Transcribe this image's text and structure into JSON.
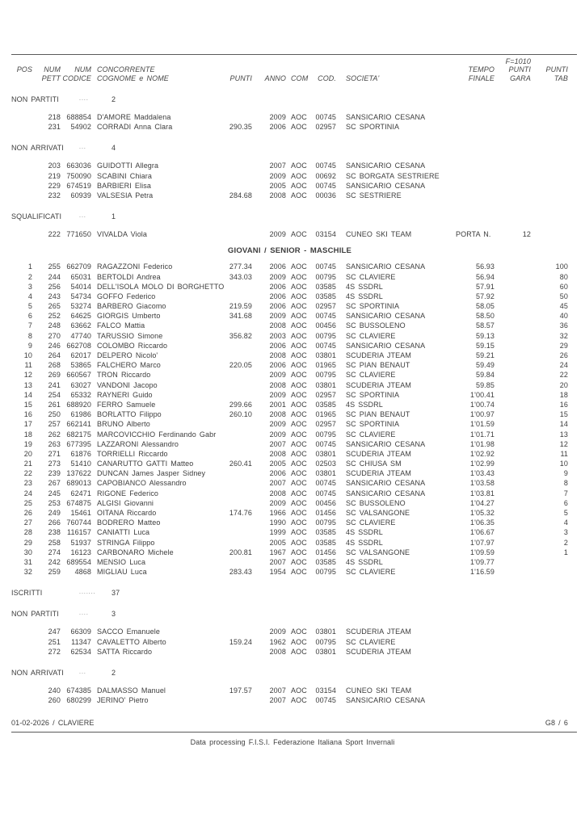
{
  "header": {
    "f_label": "F=1010",
    "line1": {
      "pos": "POS",
      "pett": "NUM",
      "codice": "NUM",
      "name": "CONCORRENTE",
      "tempo": "TEMPO",
      "gara": "PUNTI",
      "tab": "PUNTI"
    },
    "line2": {
      "pett": "PETT",
      "codice": "CODICE",
      "name": "COGNOME e NOME",
      "punti": "PUNTI",
      "anno": "ANNO",
      "com": "COM",
      "cod": "COD.",
      "societa": "SOCIETA'",
      "tempo": "FINALE",
      "gara": "GARA",
      "tab": "TAB"
    }
  },
  "sections": {
    "non_partiti_1": {
      "label": "NON PARTITI",
      "dots": "....",
      "count": "2",
      "rows": [
        [
          "",
          "218",
          "688854",
          "D'AMORE Maddalena",
          "",
          "2009",
          "AOC",
          "00745",
          "SANSICARIO CESANA",
          "",
          "",
          ""
        ],
        [
          "",
          "231",
          "54902",
          "CORRADI Anna Clara",
          "290.35",
          "2006",
          "AOC",
          "02957",
          "SC SPORTINIA",
          "",
          "",
          ""
        ]
      ]
    },
    "non_arrivati_1": {
      "label": "NON ARRIVATI",
      "dots": "...",
      "count": "4",
      "rows": [
        [
          "",
          "203",
          "663036",
          "GUIDOTTI Allegra",
          "",
          "2007",
          "AOC",
          "00745",
          "SANSICARIO CESANA",
          "",
          "",
          ""
        ],
        [
          "",
          "219",
          "750090",
          "SCABINI Chiara",
          "",
          "2009",
          "AOC",
          "00692",
          "SC BORGATA SESTRIERE",
          "",
          "",
          ""
        ],
        [
          "",
          "229",
          "674519",
          "BARBIERI Elisa",
          "",
          "2005",
          "AOC",
          "00745",
          "SANSICARIO CESANA",
          "",
          "",
          ""
        ],
        [
          "",
          "232",
          "60939",
          "VALSESIA Petra",
          "284.68",
          "2008",
          "AOC",
          "00036",
          "SC SESTRIERE",
          "",
          "",
          ""
        ]
      ]
    },
    "squalificati": {
      "label": "SQUALIFICATI",
      "dots": "...",
      "count": "1",
      "rows": [
        [
          "",
          "222",
          "771650",
          "VIVALDA Viola",
          "",
          "2009",
          "AOC",
          "03154",
          "CUNEO SKI TEAM",
          "PORTA N.",
          "12",
          ""
        ]
      ]
    },
    "results_title": "GIOVANI / SENIOR - MASCHILE",
    "results": {
      "rows": [
        [
          "1",
          "255",
          "662709",
          "RAGAZZONI Federico",
          "277.34",
          "2006",
          "AOC",
          "00745",
          "SANSICARIO CESANA",
          "56.93",
          "",
          "100"
        ],
        [
          "2",
          "244",
          "65031",
          "BERTOLDI Andrea",
          "343.03",
          "2009",
          "AOC",
          "00795",
          "SC CLAVIERE",
          "56.94",
          "",
          "80"
        ],
        [
          "3",
          "256",
          "54014",
          "DELL'ISOLA  MOLO DI BORGHETTO",
          "",
          "2006",
          "AOC",
          "03585",
          "4S SSDRL",
          "57.91",
          "",
          "60"
        ],
        [
          "4",
          "243",
          "54734",
          "GOFFO Federico",
          "",
          "2006",
          "AOC",
          "03585",
          "4S SSDRL",
          "57.92",
          "",
          "50"
        ],
        [
          "5",
          "265",
          "53274",
          "BARBERO Giacomo",
          "219.59",
          "2006",
          "AOC",
          "02957",
          "SC SPORTINIA",
          "58.05",
          "",
          "45"
        ],
        [
          "6",
          "252",
          "64625",
          "GIORGIS Umberto",
          "341.68",
          "2009",
          "AOC",
          "00745",
          "SANSICARIO CESANA",
          "58.50",
          "",
          "40"
        ],
        [
          "7",
          "248",
          "63662",
          "FALCO Mattia",
          "",
          "2008",
          "AOC",
          "00456",
          "SC BUSSOLENO",
          "58.57",
          "",
          "36"
        ],
        [
          "8",
          "270",
          "47740",
          "TARUSSIO Simone",
          "356.82",
          "2003",
          "AOC",
          "00795",
          "SC CLAVIERE",
          "59.13",
          "",
          "32"
        ],
        [
          "9",
          "246",
          "662708",
          "COLOMBO Riccardo",
          "",
          "2006",
          "AOC",
          "00745",
          "SANSICARIO CESANA",
          "59.15",
          "",
          "29"
        ],
        [
          "10",
          "264",
          "62017",
          "DELPERO Nicolo'",
          "",
          "2008",
          "AOC",
          "03801",
          "SCUDERIA JTEAM",
          "59.21",
          "",
          "26"
        ],
        [
          "11",
          "268",
          "53865",
          "FALCHERO Marco",
          "220.05",
          "2006",
          "AOC",
          "01965",
          "SC PIAN BENAUT",
          "59.49",
          "",
          "24"
        ],
        [
          "12",
          "269",
          "660567",
          "TRON Riccardo",
          "",
          "2009",
          "AOC",
          "00795",
          "SC CLAVIERE",
          "59.84",
          "",
          "22"
        ],
        [
          "13",
          "241",
          "63027",
          "VANDONI Jacopo",
          "",
          "2008",
          "AOC",
          "03801",
          "SCUDERIA JTEAM",
          "59.85",
          "",
          "20"
        ],
        [
          "14",
          "254",
          "65332",
          "RAYNERI Guido",
          "",
          "2009",
          "AOC",
          "02957",
          "SC SPORTINIA",
          "1'00.41",
          "",
          "18"
        ],
        [
          "15",
          "261",
          "688920",
          "FERRO Samuele",
          "299.66",
          "2001",
          "AOC",
          "03585",
          "4S SSDRL",
          "1'00.74",
          "",
          "16"
        ],
        [
          "16",
          "250",
          "61986",
          "BORLATTO Filippo",
          "260.10",
          "2008",
          "AOC",
          "01965",
          "SC PIAN BENAUT",
          "1'00.97",
          "",
          "15"
        ],
        [
          "17",
          "257",
          "662141",
          "BRUNO Alberto",
          "",
          "2009",
          "AOC",
          "02957",
          "SC SPORTINIA",
          "1'01.59",
          "",
          "14"
        ],
        [
          "18",
          "262",
          "682175",
          "MARCOVICCHIO Ferdinando Gabr",
          "",
          "2009",
          "AOC",
          "00795",
          "SC CLAVIERE",
          "1'01.71",
          "",
          "13"
        ],
        [
          "19",
          "263",
          "677395",
          "LAZZARONI Alessandro",
          "",
          "2007",
          "AOC",
          "00745",
          "SANSICARIO CESANA",
          "1'01.98",
          "",
          "12"
        ],
        [
          "20",
          "271",
          "61876",
          "TORRIELLI Riccardo",
          "",
          "2008",
          "AOC",
          "03801",
          "SCUDERIA JTEAM",
          "1'02.92",
          "",
          "11"
        ],
        [
          "21",
          "273",
          "51410",
          "CANARUTTO GATTI Matteo",
          "260.41",
          "2005",
          "AOC",
          "02503",
          "SC CHIUSA SM",
          "1'02.99",
          "",
          "10"
        ],
        [
          "22",
          "239",
          "137622",
          "DUNCAN James Jasper Sidney",
          "",
          "2006",
          "AOC",
          "03801",
          "SCUDERIA JTEAM",
          "1'03.43",
          "",
          "9"
        ],
        [
          "23",
          "267",
          "689013",
          "CAPOBIANCO Alessandro",
          "",
          "2007",
          "AOC",
          "00745",
          "SANSICARIO CESANA",
          "1'03.58",
          "",
          "8"
        ],
        [
          "24",
          "245",
          "62471",
          "RIGONE Federico",
          "",
          "2008",
          "AOC",
          "00745",
          "SANSICARIO CESANA",
          "1'03.81",
          "",
          "7"
        ],
        [
          "25",
          "253",
          "674875",
          "ALGISI Giovanni",
          "",
          "2009",
          "AOC",
          "00456",
          "SC BUSSOLENO",
          "1'04.27",
          "",
          "6"
        ],
        [
          "26",
          "249",
          "15461",
          "OITANA Riccardo",
          "174.76",
          "1966",
          "AOC",
          "01456",
          "SC VALSANGONE",
          "1'05.32",
          "",
          "5"
        ],
        [
          "27",
          "266",
          "760744",
          "BODRERO Matteo",
          "",
          "1990",
          "AOC",
          "00795",
          "SC CLAVIERE",
          "1'06.35",
          "",
          "4"
        ],
        [
          "28",
          "238",
          "116157",
          "CANIATTI Luca",
          "",
          "1999",
          "AOC",
          "03585",
          "4S SSDRL",
          "1'06.67",
          "",
          "3"
        ],
        [
          "29",
          "258",
          "51937",
          "STRINGA Filippo",
          "",
          "2005",
          "AOC",
          "03585",
          "4S SSDRL",
          "1'07.97",
          "",
          "2"
        ],
        [
          "30",
          "274",
          "16123",
          "CARBONARO Michele",
          "200.81",
          "1967",
          "AOC",
          "01456",
          "SC VALSANGONE",
          "1'09.59",
          "",
          "1"
        ],
        [
          "31",
          "242",
          "689554",
          "MENSIO Luca",
          "",
          "2007",
          "AOC",
          "03585",
          "4S SSDRL",
          "1'09.77",
          "",
          ""
        ],
        [
          "32",
          "259",
          "4868",
          "MIGLIAU Luca",
          "283.43",
          "1954",
          "AOC",
          "00795",
          "SC CLAVIERE",
          "1'16.59",
          "",
          ""
        ]
      ]
    },
    "iscritti": {
      "label": "ISCRITTI",
      "dots": ".......",
      "count": "37"
    },
    "non_partiti_2": {
      "label": "NON PARTITI",
      "dots": "....",
      "count": "3",
      "rows": [
        [
          "",
          "247",
          "66309",
          "SACCO Emanuele",
          "",
          "2009",
          "AOC",
          "03801",
          "SCUDERIA JTEAM",
          "",
          "",
          ""
        ],
        [
          "",
          "251",
          "11347",
          "CAVALETTO Alberto",
          "159.24",
          "1962",
          "AOC",
          "00795",
          "SC CLAVIERE",
          "",
          "",
          ""
        ],
        [
          "",
          "272",
          "62534",
          "SATTA Riccardo",
          "",
          "2008",
          "AOC",
          "03801",
          "SCUDERIA JTEAM",
          "",
          "",
          ""
        ]
      ]
    },
    "non_arrivati_2": {
      "label": "NON ARRIVATI",
      "dots": "...",
      "count": "2",
      "rows": [
        [
          "",
          "240",
          "674385",
          "DALMASSO Manuel",
          "197.57",
          "2007",
          "AOC",
          "03154",
          "CUNEO SKI TEAM",
          "",
          "",
          ""
        ],
        [
          "",
          "260",
          "680299",
          "JERINO' Pietro",
          "",
          "2007",
          "AOC",
          "00745",
          "SANSICARIO CESANA",
          "",
          "",
          ""
        ]
      ]
    }
  },
  "footer": {
    "date_location": "01-02-2026  /  CLAVIERE",
    "page_number": "G8 / 6",
    "processing": "Data processing F.I.S.I. Federazione Italiana Sport Invernali"
  }
}
